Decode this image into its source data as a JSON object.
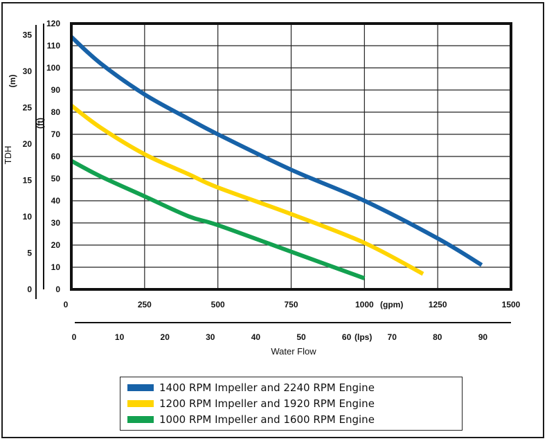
{
  "chart_data": {
    "type": "line",
    "xlabel": "Water Flow",
    "ylabel": "TDH",
    "x_unit_primary": "(gpm)",
    "x_unit_secondary": "(lps)",
    "y_unit_feet": "(ft)",
    "y_unit_meters": "(m)",
    "xlim": [
      0,
      1500
    ],
    "ylim": [
      0,
      120
    ],
    "x_ticks": [
      0,
      250,
      500,
      750,
      1000,
      1250,
      1500
    ],
    "y_ticks": [
      0,
      10,
      20,
      30,
      40,
      50,
      60,
      70,
      80,
      90,
      100,
      110,
      120
    ],
    "x_ticks_lps": [
      0,
      10,
      20,
      30,
      40,
      50,
      60,
      70,
      80,
      90
    ],
    "y_ticks_m": [
      0,
      5,
      10,
      15,
      20,
      25,
      30,
      35
    ],
    "grid": true,
    "legend_position": "bottom",
    "series": [
      {
        "name": "1400 RPM Impeller and 2240 RPM Engine",
        "color": "#1762a8",
        "x": [
          0,
          100,
          250,
          400,
          500,
          750,
          1000,
          1250,
          1400
        ],
        "y": [
          114,
          102,
          88,
          77,
          70,
          54,
          40,
          23,
          11
        ]
      },
      {
        "name": "1200 RPM Impeller and 1920 RPM Engine",
        "color": "#ffd500",
        "x": [
          0,
          100,
          250,
          400,
          500,
          750,
          1000,
          1200
        ],
        "y": [
          83,
          73,
          61,
          52,
          46,
          34,
          21,
          7
        ]
      },
      {
        "name": "1000 RPM Impeller and 1600 RPM Engine",
        "color": "#13a150",
        "x": [
          0,
          100,
          250,
          400,
          500,
          750,
          1000
        ],
        "y": [
          58,
          51,
          42,
          33,
          29,
          17,
          5
        ]
      }
    ]
  }
}
